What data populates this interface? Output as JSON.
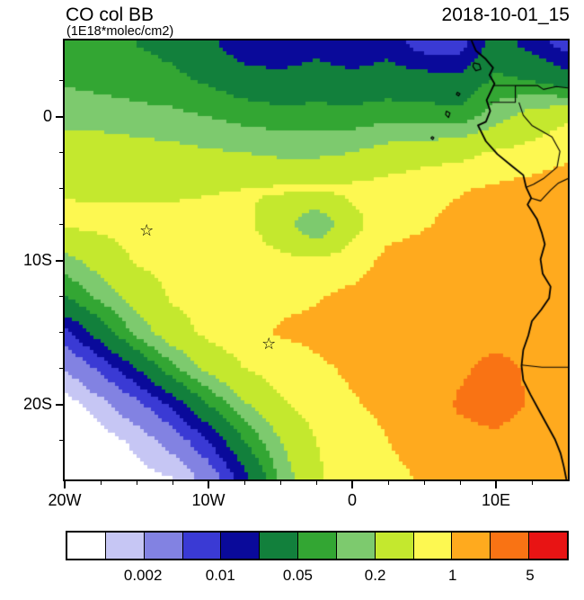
{
  "chart_data": {
    "type": "heatmap",
    "title": "CO col BB",
    "units_label": "(1E18*molec/cm2)",
    "timestamp": "2018-10-01_15",
    "extent": {
      "lon_min": -20,
      "lon_max": 15,
      "lat_min": -25.2,
      "lat_max": 5.3
    },
    "x": [
      -20,
      -17.5,
      -15,
      -12.5,
      -10,
      -7.5,
      -5,
      -2.5,
      0,
      2.5,
      5,
      7.5,
      10,
      12.5,
      15
    ],
    "y": [
      5,
      2.5,
      0,
      -2.5,
      -5,
      -7.5,
      -10,
      -12.5,
      -15,
      -17.5,
      -20,
      -22.5,
      -25
    ],
    "values": [
      [
        0.06,
        0.06,
        0.05,
        0.04,
        0.025,
        0.012,
        0.012,
        0.015,
        0.012,
        0.015,
        0.007,
        0.007,
        0.03,
        0.015,
        0.007
      ],
      [
        0.09,
        0.08,
        0.07,
        0.06,
        0.045,
        0.03,
        0.025,
        0.03,
        0.025,
        0.03,
        0.03,
        0.025,
        0.06,
        0.05,
        0.03
      ],
      [
        0.16,
        0.15,
        0.13,
        0.12,
        0.1,
        0.08,
        0.07,
        0.07,
        0.07,
        0.08,
        0.07,
        0.07,
        0.15,
        0.3,
        0.45
      ],
      [
        0.3,
        0.3,
        0.28,
        0.25,
        0.22,
        0.2,
        0.17,
        0.17,
        0.2,
        0.28,
        0.35,
        0.4,
        0.55,
        0.65,
        0.85
      ],
      [
        0.48,
        0.45,
        0.45,
        0.45,
        0.48,
        0.5,
        0.55,
        0.55,
        0.6,
        0.7,
        0.85,
        0.95,
        1.1,
        1.3,
        1.5
      ],
      [
        0.55,
        0.6,
        0.62,
        0.6,
        0.6,
        0.6,
        0.3,
        0.09,
        0.38,
        0.8,
        0.95,
        1.2,
        1.4,
        1.5,
        1.6
      ],
      [
        0.15,
        0.3,
        0.55,
        0.6,
        0.65,
        0.7,
        0.6,
        0.6,
        0.7,
        1.2,
        1.3,
        1.5,
        1.5,
        1.45,
        1.4
      ],
      [
        0.05,
        0.12,
        0.3,
        0.55,
        0.65,
        0.8,
        0.9,
        0.95,
        1.2,
        1.4,
        1.5,
        1.55,
        1.45,
        1.35,
        1.4
      ],
      [
        0.008,
        0.03,
        0.12,
        0.35,
        0.6,
        0.85,
        1.05,
        1.15,
        1.3,
        1.4,
        1.5,
        1.6,
        1.5,
        1.5,
        1.5
      ],
      [
        0.002,
        0.006,
        0.02,
        0.08,
        0.25,
        0.5,
        0.7,
        0.9,
        1.1,
        1.2,
        1.35,
        1.8,
        2.5,
        1.8,
        1.6
      ],
      [
        0.0007,
        0.0015,
        0.004,
        0.012,
        0.05,
        0.18,
        0.45,
        0.7,
        0.95,
        1.15,
        1.4,
        2.2,
        2.6,
        1.9,
        1.5
      ],
      [
        0.0004,
        0.0007,
        0.0012,
        0.003,
        0.01,
        0.05,
        0.2,
        0.5,
        0.75,
        1.0,
        1.2,
        1.6,
        1.8,
        1.4,
        1.2
      ],
      [
        0.0003,
        0.0005,
        0.0008,
        0.001,
        0.003,
        0.015,
        0.12,
        0.45,
        0.7,
        0.9,
        1.05,
        1.2,
        1.25,
        1.1,
        1.0
      ]
    ],
    "levels": [
      0.001,
      0.002,
      0.005,
      0.01,
      0.02,
      0.05,
      0.1,
      0.2,
      0.5,
      1,
      2,
      5
    ],
    "colors": [
      "#FFFFFF",
      "#C6C6F4",
      "#8282E2",
      "#3A3AD4",
      "#0A0A9A",
      "#12803C",
      "#33A633",
      "#7DCA6E",
      "#C4E82E",
      "#FDF851",
      "#FFAA1E",
      "#F97314",
      "#E81414"
    ],
    "colorbar_labels": [
      "0.002",
      "0.01",
      "0.05",
      "0.2",
      "1",
      "5"
    ],
    "x_ticks": [
      {
        "label": "20W",
        "value": -20
      },
      {
        "label": "10W",
        "value": -10
      },
      {
        "label": "0",
        "value": 0
      },
      {
        "label": "10E",
        "value": 10
      }
    ],
    "y_ticks": [
      {
        "label": "0",
        "value": 0
      },
      {
        "label": "10S",
        "value": -10
      },
      {
        "label": "20S",
        "value": -20
      }
    ],
    "marker_symbol": "☆",
    "markers": [
      {
        "lon": -14.3,
        "lat": -8.0
      },
      {
        "lon": -5.8,
        "lat": -15.9
      }
    ],
    "coastline": [
      [
        8.3,
        5.3
      ],
      [
        8.6,
        4.6
      ],
      [
        9.3,
        4.0
      ],
      [
        9.8,
        3.4
      ],
      [
        9.55,
        2.9
      ],
      [
        9.9,
        2.3
      ],
      [
        9.35,
        1.15
      ],
      [
        9.6,
        0.4
      ],
      [
        9.3,
        -0.35
      ],
      [
        8.75,
        -0.6
      ],
      [
        9.3,
        -1.7
      ],
      [
        10.1,
        -2.6
      ],
      [
        11.2,
        -3.5
      ],
      [
        11.9,
        -4.05
      ],
      [
        12.1,
        -4.9
      ],
      [
        12.45,
        -5.65
      ],
      [
        12.2,
        -6.1
      ],
      [
        12.85,
        -7.1
      ],
      [
        13.2,
        -8.1
      ],
      [
        13.4,
        -8.85
      ],
      [
        13.1,
        -9.9
      ],
      [
        13.25,
        -10.9
      ],
      [
        13.8,
        -11.8
      ],
      [
        13.7,
        -12.6
      ],
      [
        13.15,
        -13.4
      ],
      [
        12.5,
        -14.2
      ],
      [
        12.25,
        -15.2
      ],
      [
        11.9,
        -16.2
      ],
      [
        11.78,
        -17.3
      ],
      [
        11.9,
        -18.3
      ],
      [
        12.4,
        -19.3
      ],
      [
        13.0,
        -20.4
      ],
      [
        13.55,
        -21.4
      ],
      [
        14.1,
        -22.4
      ],
      [
        14.5,
        -23.4
      ],
      [
        14.72,
        -24.3
      ],
      [
        14.9,
        -25.2
      ]
    ],
    "islands": [
      [
        [
          8.45,
          3.75
        ],
        [
          8.85,
          3.65
        ],
        [
          8.95,
          3.3
        ],
        [
          8.6,
          3.2
        ],
        [
          8.4,
          3.5
        ],
        [
          8.45,
          3.75
        ]
      ],
      [
        [
          7.3,
          1.7
        ],
        [
          7.5,
          1.6
        ],
        [
          7.4,
          1.45
        ],
        [
          7.25,
          1.55
        ],
        [
          7.3,
          1.7
        ]
      ],
      [
        [
          6.55,
          0.4
        ],
        [
          6.8,
          0.25
        ],
        [
          6.7,
          -0.05
        ],
        [
          6.5,
          0.15
        ],
        [
          6.55,
          0.4
        ]
      ],
      [
        [
          5.55,
          -1.38
        ],
        [
          5.68,
          -1.45
        ],
        [
          5.6,
          -1.58
        ],
        [
          5.48,
          -1.48
        ],
        [
          5.55,
          -1.38
        ]
      ]
    ],
    "borders": [
      [
        [
          9.85,
          2.17
        ],
        [
          11.35,
          2.17
        ]
      ],
      [
        [
          11.35,
          2.17
        ],
        [
          11.35,
          1.0
        ],
        [
          9.6,
          1.0
        ]
      ],
      [
        [
          11.35,
          2.17
        ],
        [
          12.9,
          2.17
        ],
        [
          13.3,
          1.9
        ],
        [
          14.2,
          2.1
        ],
        [
          15,
          2.0
        ]
      ],
      [
        [
          11.6,
          1.0
        ],
        [
          11.9,
          0.1
        ],
        [
          12.5,
          -0.6
        ],
        [
          13.9,
          -1.4
        ],
        [
          14.45,
          -2.4
        ],
        [
          14.25,
          -3.5
        ],
        [
          13.3,
          -4.3
        ],
        [
          12.6,
          -4.7
        ],
        [
          12.1,
          -4.9
        ]
      ],
      [
        [
          15,
          -4.3
        ],
        [
          14.35,
          -4.6
        ],
        [
          13.8,
          -5.1
        ],
        [
          13.1,
          -5.85
        ],
        [
          12.45,
          -5.65
        ]
      ],
      [
        [
          11.78,
          -17.25
        ],
        [
          13.2,
          -17.4
        ],
        [
          15,
          -17.4
        ]
      ]
    ]
  }
}
